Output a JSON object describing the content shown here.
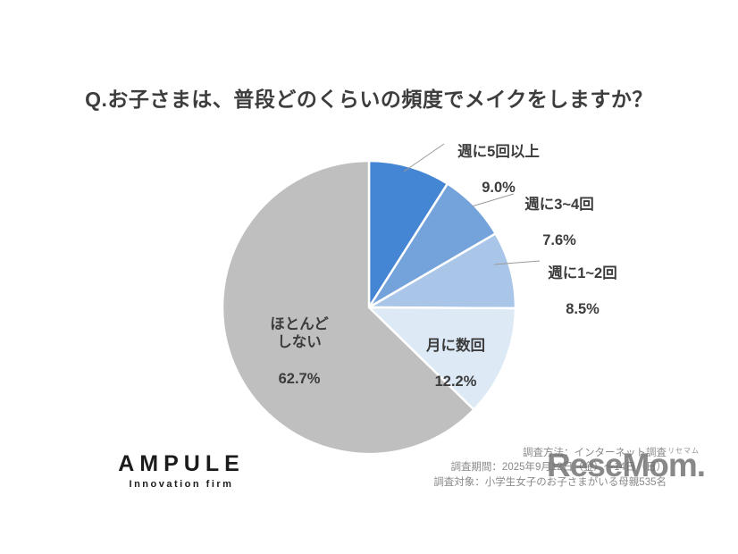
{
  "title": "Q.お子さまは、普段どのくらいの頻度でメイクをしますか？",
  "chart_data": {
    "type": "pie",
    "title": "Q.お子さまは、普段どのくらいの頻度でメイクをしますか？",
    "start_angle_deg": 0,
    "direction": "clockwise",
    "slices": [
      {
        "label": "週に5回以上",
        "label_display": "週に5回以上",
        "value": 9.0,
        "pct_label": "9.0%",
        "color": "#4486d4"
      },
      {
        "label": "週に3~4回",
        "label_display": "週に3~4回",
        "value": 7.6,
        "pct_label": "7.6%",
        "color": "#74a3db"
      },
      {
        "label": "週に1~2回",
        "label_display": "週に1~2回",
        "value": 8.5,
        "pct_label": "8.5%",
        "color": "#a9c6e8"
      },
      {
        "label": "月に数回",
        "label_display": "月に数回",
        "value": 12.2,
        "pct_label": "12.2%",
        "color": "#dde9f5"
      },
      {
        "label": "ほとんどしない",
        "label_display": "ほとんど\nしない",
        "value": 62.7,
        "pct_label": "62.7%",
        "color": "#bfbfbf"
      }
    ],
    "colors": {
      "separator": "#ffffff",
      "leader_line": "#9a9a9a",
      "label_text": "#3c3c3c"
    }
  },
  "logo": {
    "name": "AMPULE",
    "tagline": "Innovation firm"
  },
  "footer": {
    "method": "調査方法：インターネット調査",
    "period": "調査期間：2025年9月12日（金）～14日（日）",
    "target": "調査対象：小学生女子のお子さまがいる母親535名"
  },
  "watermark": {
    "text": "ReseMom.",
    "ruby": "リセマム"
  }
}
